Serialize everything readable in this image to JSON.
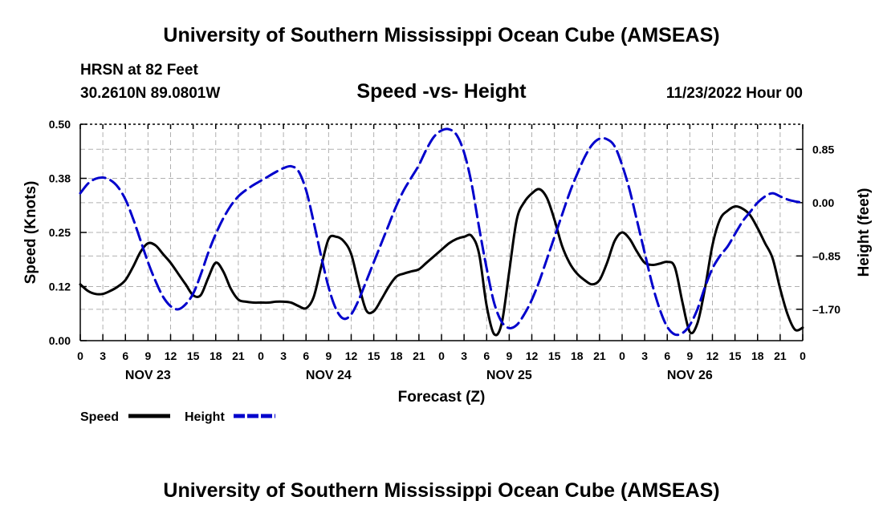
{
  "header": {
    "title": "University of Southern Mississippi Ocean Cube (AMSEAS)",
    "station": "HRSN at 82 Feet",
    "coords": "30.2610N  89.0801W",
    "subtitle": "Speed -vs- Height",
    "datetime": "11/23/2022 Hour 00"
  },
  "footer": {
    "title": "University of Southern Mississippi Ocean Cube (AMSEAS)"
  },
  "colors": {
    "speed": "#000000",
    "height": "#0000cc",
    "grid": "#b0b0b0"
  },
  "chart_data": {
    "type": "line",
    "title": "Speed -vs- Height",
    "xlabel": "Forecast (Z)",
    "ylabel": "Speed (Knots)",
    "y2label": "Height (feet)",
    "xlim": [
      0,
      96
    ],
    "ylim": [
      0,
      0.5
    ],
    "y2lim": [
      -2.2,
      1.25
    ],
    "yticks": [
      0.0,
      0.125,
      0.25,
      0.375,
      0.5
    ],
    "yticklabels": [
      "0.00",
      "0.12",
      "0.25",
      "0.38",
      "0.50"
    ],
    "y2ticks": [
      -1.7,
      -0.85,
      0.0,
      0.85
    ],
    "y2ticklabels": [
      "-1.70",
      "-0.85",
      "0.00",
      "0.85"
    ],
    "xticks": [
      0,
      3,
      6,
      9,
      12,
      15,
      18,
      21,
      24,
      27,
      30,
      33,
      36,
      39,
      42,
      45,
      48,
      51,
      54,
      57,
      60,
      63,
      66,
      69,
      72,
      75,
      78,
      81,
      84,
      87,
      90,
      93,
      96
    ],
    "xticklabels": [
      "0",
      "3",
      "6",
      "9",
      "12",
      "15",
      "18",
      "21",
      "0",
      "3",
      "6",
      "9",
      "12",
      "15",
      "18",
      "21",
      "0",
      "3",
      "6",
      "9",
      "12",
      "15",
      "18",
      "21",
      "0",
      "3",
      "6",
      "9",
      "12",
      "15",
      "18",
      "21",
      "0"
    ],
    "day_labels": [
      {
        "label": "NOV 23",
        "x": 9
      },
      {
        "label": "NOV 24",
        "x": 33
      },
      {
        "label": "NOV 25",
        "x": 57
      },
      {
        "label": "NOV 26",
        "x": 81
      }
    ],
    "legend": [
      "Speed",
      "Height"
    ],
    "series": [
      {
        "name": "Speed",
        "style": "solid",
        "axis": "left",
        "x": [
          0,
          1,
          2,
          3,
          4,
          5,
          6,
          7,
          8,
          9,
          10,
          11,
          12,
          13,
          14,
          15,
          16,
          17,
          18,
          19,
          20,
          21,
          22,
          23,
          24,
          25,
          26,
          27,
          28,
          29,
          30,
          31,
          32,
          33,
          34,
          35,
          36,
          37,
          38,
          39,
          40,
          41,
          42,
          43,
          44,
          45,
          46,
          47,
          48,
          49,
          50,
          51,
          52,
          53,
          54,
          55,
          56,
          57,
          58,
          59,
          60,
          61,
          62,
          63,
          64,
          65,
          66,
          67,
          68,
          69,
          70,
          71,
          72,
          73,
          74,
          75,
          76,
          77,
          78,
          79,
          80,
          81,
          82,
          83,
          84,
          85,
          86,
          87,
          88,
          89,
          90,
          91,
          92,
          93,
          94,
          95,
          96
        ],
        "values": [
          0.13,
          0.115,
          0.108,
          0.108,
          0.115,
          0.125,
          0.14,
          0.17,
          0.205,
          0.225,
          0.22,
          0.2,
          0.18,
          0.155,
          0.13,
          0.105,
          0.105,
          0.145,
          0.18,
          0.16,
          0.12,
          0.095,
          0.09,
          0.088,
          0.088,
          0.088,
          0.09,
          0.09,
          0.088,
          0.08,
          0.075,
          0.1,
          0.17,
          0.235,
          0.24,
          0.23,
          0.2,
          0.13,
          0.07,
          0.068,
          0.095,
          0.125,
          0.148,
          0.155,
          0.16,
          0.165,
          0.18,
          0.195,
          0.21,
          0.225,
          0.235,
          0.24,
          0.242,
          0.2,
          0.08,
          0.015,
          0.04,
          0.16,
          0.28,
          0.32,
          0.34,
          0.35,
          0.33,
          0.28,
          0.22,
          0.18,
          0.155,
          0.14,
          0.13,
          0.14,
          0.18,
          0.23,
          0.25,
          0.235,
          0.205,
          0.18,
          0.175,
          0.178,
          0.182,
          0.17,
          0.09,
          0.02,
          0.04,
          0.12,
          0.22,
          0.28,
          0.3,
          0.31,
          0.305,
          0.29,
          0.26,
          0.225,
          0.19,
          0.12,
          0.06,
          0.025,
          0.03
        ]
      },
      {
        "name": "Height",
        "style": "dashed",
        "axis": "right",
        "x": [
          0,
          1,
          2,
          3,
          4,
          5,
          6,
          7,
          8,
          9,
          10,
          11,
          12,
          13,
          14,
          15,
          16,
          17,
          18,
          19,
          20,
          21,
          22,
          23,
          24,
          25,
          26,
          27,
          28,
          29,
          30,
          31,
          32,
          33,
          34,
          35,
          36,
          37,
          38,
          39,
          40,
          41,
          42,
          43,
          44,
          45,
          46,
          47,
          48,
          49,
          50,
          51,
          52,
          53,
          54,
          55,
          56,
          57,
          58,
          59,
          60,
          61,
          62,
          63,
          64,
          65,
          66,
          67,
          68,
          69,
          70,
          71,
          72,
          73,
          74,
          75,
          76,
          77,
          78,
          79,
          80,
          81,
          82,
          83,
          84,
          85,
          86,
          87,
          88,
          89,
          90,
          91,
          92,
          93,
          94,
          95,
          96
        ],
        "values": [
          0.15,
          0.3,
          0.38,
          0.4,
          0.36,
          0.25,
          0.05,
          -0.25,
          -0.6,
          -0.95,
          -1.25,
          -1.5,
          -1.65,
          -1.7,
          -1.62,
          -1.45,
          -1.15,
          -0.8,
          -0.5,
          -0.25,
          -0.05,
          0.1,
          0.2,
          0.28,
          0.35,
          0.42,
          0.49,
          0.55,
          0.58,
          0.5,
          0.2,
          -0.3,
          -0.85,
          -1.35,
          -1.7,
          -1.85,
          -1.78,
          -1.55,
          -1.25,
          -0.95,
          -0.65,
          -0.35,
          -0.05,
          0.2,
          0.4,
          0.6,
          0.85,
          1.05,
          1.15,
          1.17,
          1.08,
          0.8,
          0.3,
          -0.4,
          -1.05,
          -1.6,
          -1.9,
          -2.0,
          -1.95,
          -1.78,
          -1.55,
          -1.25,
          -0.9,
          -0.55,
          -0.2,
          0.15,
          0.45,
          0.72,
          0.92,
          1.02,
          1.01,
          0.9,
          0.6,
          0.2,
          -0.3,
          -0.8,
          -1.3,
          -1.7,
          -1.98,
          -2.1,
          -2.08,
          -1.95,
          -1.7,
          -1.35,
          -1.05,
          -0.85,
          -0.7,
          -0.5,
          -0.3,
          -0.15,
          0.0,
          0.1,
          0.15,
          0.1,
          0.05,
          0.02,
          0.0
        ]
      }
    ]
  }
}
